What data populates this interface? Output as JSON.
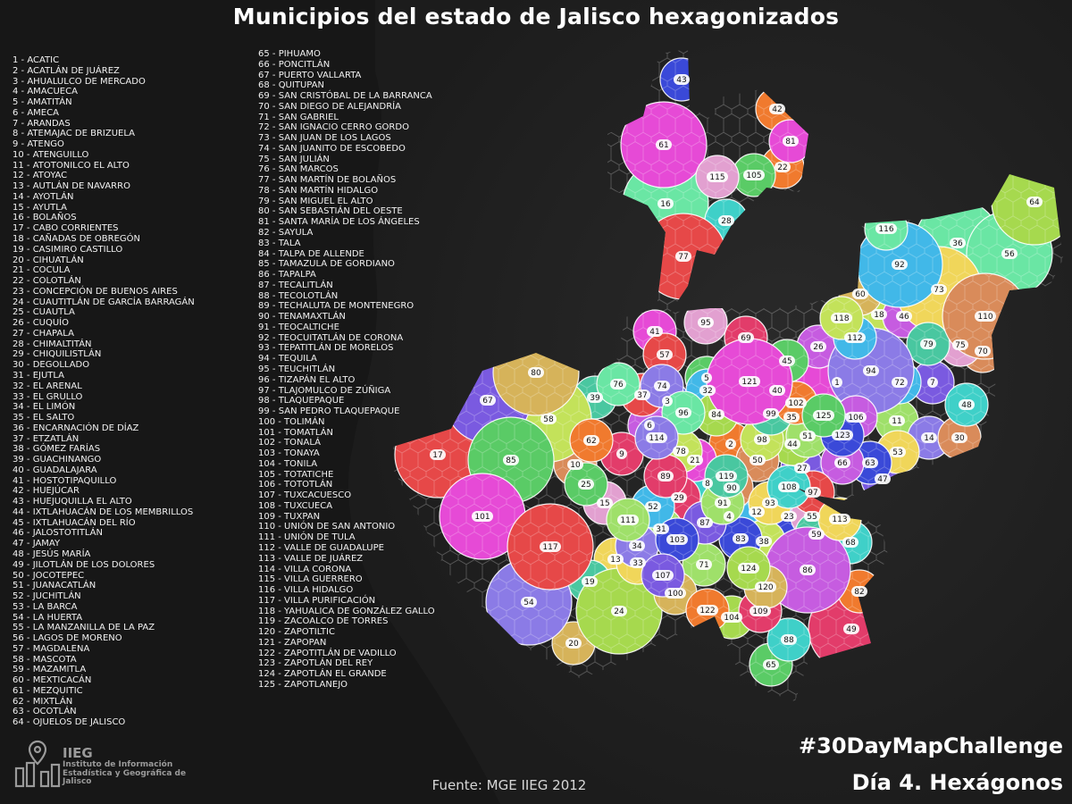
{
  "title": "Municipios del estado de Jalisco hexagonizados",
  "legend_col_1": [
    "1 - ACATIC",
    "2 - ACATLÁN DE JUÁREZ",
    "3 - AHUALULCO DE MERCADO",
    "4 - AMACUECA",
    "5 - AMATITÁN",
    "6 - AMECA",
    "7 - ARANDAS",
    "8 - ATEMAJAC DE BRIZUELA",
    "9 - ATENGO",
    "10 - ATENGUILLO",
    "11 - ATOTONILCO EL ALTO",
    "12 - ATOYAC",
    "13 - AUTLÁN DE NAVARRO",
    "14 - AYOTLÁN",
    "15 - AYUTLA",
    "16 - BOLAÑOS",
    "17 - CABO CORRIENTES",
    "18 - CAÑADAS DE OBREGÓN",
    "19 - CASIMIRO CASTILLO",
    "20 - CIHUATLÁN",
    "21 - COCULA",
    "22 - COLOTLÁN",
    "23 - CONCEPCIÓN DE BUENOS AIRES",
    "24 - CUAUTITLÁN DE GARCÍA BARRAGÁN",
    "25 - CUAUTLA",
    "26 - CUQUÍO",
    "27 - CHAPALA",
    "28 - CHIMALTITÁN",
    "29 - CHIQUILISTLÁN",
    "30 - DEGOLLADO",
    "31 - EJUTLA",
    "32 - EL ARENAL",
    "33 - EL GRULLO",
    "34 - EL LIMÓN",
    "35 - EL SALTO",
    "36 - ENCARNACIÓN DE DÍAZ",
    "37 - ETZATLÁN",
    "38 - GÓMEZ FARÍAS",
    "39 - GUACHINANGO",
    "40 - GUADALAJARA",
    "41 - HOSTOTIPAQUILLO",
    "42 - HUEJÚCAR",
    "43 - HUEJUQUILLA EL ALTO",
    "44 - IXTLAHUACÁN DE LOS MEMBRILLOS",
    "45 - IXTLAHUACÁN DEL RÍO",
    "46 - JALOSTOTITLÁN",
    "47 - JAMAY",
    "48 - JESÚS MARÍA",
    "49 - JILOTLÁN DE LOS DOLORES",
    "50 - JOCOTEPEC",
    "51 - JUANACATLÁN",
    "52 - JUCHITLÁN",
    "53 - LA BARCA",
    "54 - LA HUERTA",
    "55 - LA MANZANILLA DE LA PAZ",
    "56 - LAGOS DE MORENO",
    "57 - MAGDALENA",
    "58 - MASCOTA",
    "59 - MAZAMITLA",
    "60 - MEXTICACÁN",
    "61 - MEZQUITIC",
    "62 - MIXTLÁN",
    "63 - OCOTLÁN",
    "64 - OJUELOS DE JALISCO"
  ],
  "legend_col_2": [
    "65 - PIHUAMO",
    "66 - PONCITLÁN",
    "67 - PUERTO VALLARTA",
    "68 - QUITUPAN",
    "69 - SAN CRISTÓBAL DE LA BARRANCA",
    "70 - SAN DIEGO DE ALEJANDRÍA",
    "71 - SAN GABRIEL",
    "72 - SAN IGNACIO CERRO GORDO",
    "73 - SAN JUAN DE LOS LAGOS",
    "74 - SAN JUANITO DE ESCOBEDO",
    "75 - SAN JULIÁN",
    "76 - SAN MARCOS",
    "77 - SAN MARTÍN DE BOLAÑOS",
    "78 - SAN MARTÍN HIDALGO",
    "79 - SAN MIGUEL EL ALTO",
    "80 - SAN SEBASTIÁN DEL OESTE",
    "81 - SANTA MARÍA DE LOS ÁNGELES",
    "82 - SAYULA",
    "83 - TALA",
    "84 - TALPA DE ALLENDE",
    "85 - TAMAZULA DE GORDIANO",
    "86 - TAPALPA",
    "87 - TECALITLÁN",
    "88 - TECOLOTLÁN",
    "89 - TECHALUTA DE MONTENEGRO",
    "90 - TENAMAXTLÁN",
    "91 - TEOCALTICHE",
    "92 - TEOCUITATLÁN DE CORONA",
    "93 - TEPATITLÁN DE MORELOS",
    "94 - TEQUILA",
    "95 - TEUCHITLÁN",
    "96 - TIZAPÁN EL ALTO",
    "97 - TLAJOMULCO DE ZÚÑIGA",
    "98 - TLAQUEPAQUE",
    "99 - SAN PEDRO TLAQUEPAQUE",
    "100 - TOLIMÁN",
    "101 - TOMATLÁN",
    "102 - TONALÁ",
    "103 - TONAYA",
    "104 - TONILA",
    "105 - TOTATICHE",
    "106 - TOTOTLÁN",
    "107 - TUXCACUESCO",
    "108 - TUXCUECA",
    "109 - TUXPAN",
    "110 - UNIÓN DE SAN ANTONIO",
    "111 - UNIÓN DE TULA",
    "112 - VALLE DE GUADALUPE",
    "113 - VALLE DE JUÁREZ",
    "114 - VILLA CORONA",
    "115 - VILLA GUERRERO",
    "116 - VILLA HIDALGO",
    "117 - VILLA PURIFICACIÓN",
    "118 - YAHUALICA DE GONZÁLEZ GALLO",
    "119 - ZACOALCO DE TORRES",
    "120 - ZAPOTILTIC",
    "121 - ZAPOPAN",
    "122 - ZAPOTITLÁN DE VADILLO",
    "123 - ZAPOTLÁN DEL REY",
    "124 - ZAPOTLÁN EL GRANDE",
    "125 - ZAPOTLANEJO"
  ],
  "map_labels": {
    "n1": "1",
    "n2": "2",
    "n3": "3",
    "n4": "4",
    "n5": "5",
    "n6": "6",
    "n7": "7",
    "n8": "8",
    "n9": "9",
    "n10": "10",
    "n11": "11",
    "n12": "12",
    "n13": "13",
    "n14": "14",
    "n15": "15",
    "n16": "16",
    "n17": "17",
    "n18": "18",
    "n19": "19",
    "n20": "20",
    "n21": "21",
    "n22": "22",
    "n23": "23",
    "n24": "24",
    "n25": "25",
    "n26": "26",
    "n27": "27",
    "n28": "28",
    "n29": "29",
    "n30": "30",
    "n31": "31",
    "n32": "32",
    "n33": "33",
    "n34": "34",
    "n35": "35",
    "n36": "36",
    "n37": "37",
    "n38": "38",
    "n39": "39",
    "n40": "40",
    "n41": "41",
    "n42": "42",
    "n43": "43",
    "n44": "44",
    "n45": "45",
    "n46": "46",
    "n47": "47",
    "n48": "48",
    "n49": "49",
    "n50": "50",
    "n51": "51",
    "n52": "52",
    "n53": "53",
    "n54": "54",
    "n55": "55",
    "n56": "56",
    "n57": "57",
    "n58": "58",
    "n59": "59",
    "n60": "60",
    "n61": "61",
    "n62": "62",
    "n63": "63",
    "n64": "64",
    "n65": "65",
    "n66": "66",
    "n67": "67",
    "n68": "68",
    "n69": "69",
    "n70": "70",
    "n71": "71",
    "n72": "72",
    "n73": "73",
    "n74": "74",
    "n75": "75",
    "n76": "76",
    "n77": "77",
    "n78": "78",
    "n79": "79",
    "n80": "80",
    "n81": "81",
    "n82": "82",
    "n83": "83",
    "n84": "84",
    "n85": "85",
    "n86": "86",
    "n87": "87",
    "n88": "88",
    "n89": "89",
    "n90": "90",
    "n91": "91",
    "n92": "92",
    "n93": "93",
    "n94": "94",
    "n95": "95",
    "n96": "96",
    "n97": "97",
    "n98": "98",
    "n99": "99",
    "n100": "100",
    "n101": "101",
    "n102": "102",
    "n103": "103",
    "n104": "104",
    "n105": "105",
    "n106": "106",
    "n107": "107",
    "n108": "108",
    "n109": "109",
    "n110": "110",
    "n111": "111",
    "n112": "112",
    "n113": "113",
    "n114": "114",
    "n115": "115",
    "n116": "116",
    "n117": "117",
    "n118": "118",
    "n119": "119",
    "n120": "120",
    "n121": "121",
    "n122": "122",
    "n123": "123",
    "n124": "124",
    "n125": "125"
  },
  "logo": {
    "acronym": "IIEG",
    "name": "Instituto de Información Estadística y Geográfica de Jalisco"
  },
  "source": "Fuente: MGE IIEG 2012",
  "hashtag": "#30DayMapChallenge",
  "day": "Día 4. Hexágonos",
  "colors": {
    "background": "#1b1b1b",
    "text": "#ffffff",
    "logo_gray": "#9a9a9a"
  }
}
